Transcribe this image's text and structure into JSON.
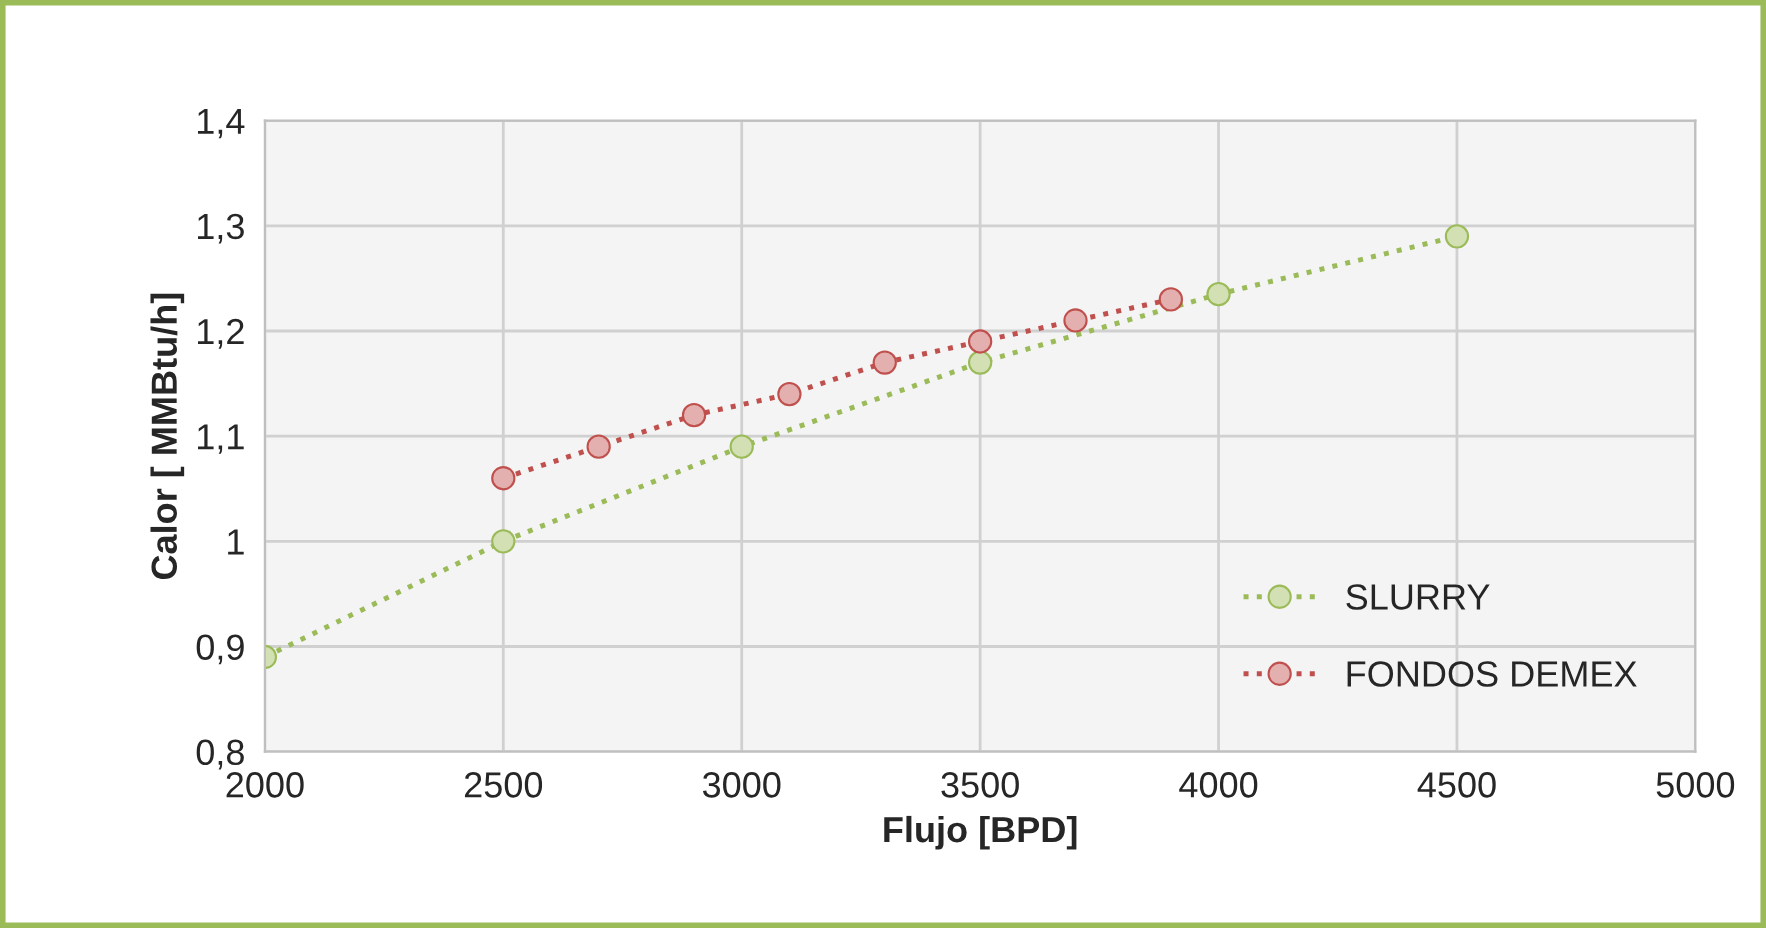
{
  "chart_data": {
    "type": "line",
    "xlabel": "Flujo [BPD]",
    "ylabel": "Calor [ MMBtu/h]",
    "series": [
      {
        "name": "SLURRY",
        "color": "#9bbb59",
        "x": [
          2000,
          2500,
          3000,
          3500,
          4000,
          4500
        ],
        "values": [
          0.89,
          1.0,
          1.09,
          1.17,
          1.235,
          1.29
        ]
      },
      {
        "name": "FONDOS DEMEX",
        "color": "#c0504d",
        "x": [
          2500,
          2700,
          2900,
          3100,
          3300,
          3500,
          3700,
          3900
        ],
        "values": [
          1.06,
          1.09,
          1.12,
          1.14,
          1.17,
          1.19,
          1.21,
          1.23
        ]
      }
    ],
    "xlim": [
      2000,
      5000
    ],
    "xticks": [
      2000,
      2500,
      3000,
      3500,
      4000,
      4500,
      5000
    ],
    "ylim": [
      0.8,
      1.4
    ],
    "yticks": [
      {
        "value": 0.8,
        "label": "0,8"
      },
      {
        "value": 0.9,
        "label": "0,9"
      },
      {
        "value": 1.0,
        "label": "1"
      },
      {
        "value": 1.1,
        "label": "1,1"
      },
      {
        "value": 1.2,
        "label": "1,2"
      },
      {
        "value": 1.3,
        "label": "1,3"
      },
      {
        "value": 1.4,
        "label": "1,4"
      }
    ],
    "grid": true,
    "legend": "bottom right",
    "marker": "circle",
    "line_style": "dotted"
  }
}
